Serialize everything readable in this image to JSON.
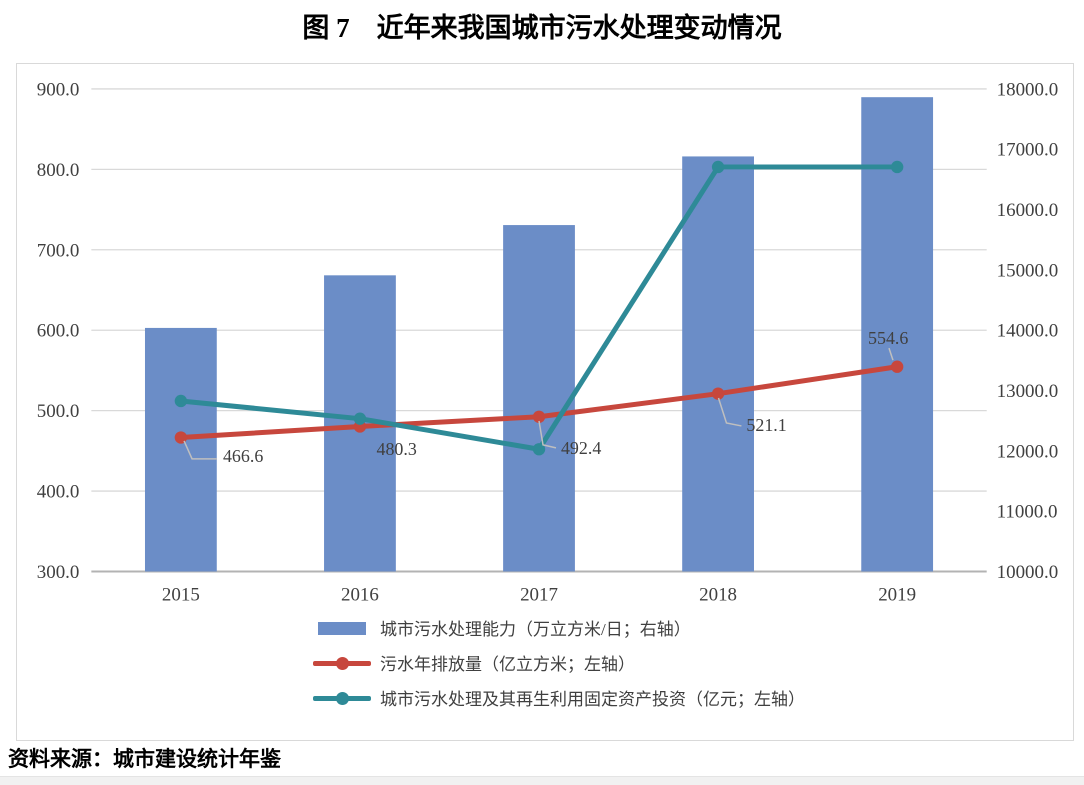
{
  "page": {
    "title": "图 7　近年来我国城市污水处理变动情况",
    "source_note": "资料来源：城市建设统计年鉴"
  },
  "chart_data": {
    "type": "combo",
    "title": "图 7　近年来我国城市污水处理变动情况",
    "categories": [
      "2015",
      "2016",
      "2017",
      "2018",
      "2019"
    ],
    "series": [
      {
        "name": "城市污水处理能力（万立方米/日；右轴）",
        "type": "bar",
        "axis": "right",
        "color": "#6b8dc7",
        "values": [
          14038,
          14910,
          15743,
          16881,
          17863
        ]
      },
      {
        "name": "污水年排放量（亿立方米；左轴）",
        "type": "line",
        "axis": "left",
        "color": "#c7473d",
        "values": [
          466.6,
          480.3,
          492.4,
          521.1,
          554.6
        ],
        "data_labels": [
          "466.6",
          "480.3",
          "492.4",
          "521.1",
          "554.6"
        ]
      },
      {
        "name": "城市污水处理及其再生利用固定资产投资（亿元；左轴）",
        "type": "line",
        "axis": "left",
        "color": "#2e8a97",
        "values": [
          512,
          490,
          452,
          803,
          803
        ]
      }
    ],
    "left_axis": {
      "min": 300,
      "max": 900,
      "step": 100,
      "decimals": 1,
      "tick_labels": [
        "900.0",
        "800.0",
        "700.0",
        "600.0",
        "500.0",
        "400.0",
        "300.0"
      ]
    },
    "right_axis": {
      "min": 10000,
      "max": 18000,
      "step": 1000,
      "decimals": 1,
      "tick_labels": [
        "18000.0",
        "17000.0",
        "16000.0",
        "15000.0",
        "14000.0",
        "13000.0",
        "12000.0",
        "11000.0",
        "10000.0"
      ]
    },
    "grid": true,
    "legend_position": "bottom",
    "colors": {
      "gridline": "#d9d9d9",
      "baseline": "#b3b3b3",
      "axis_text": "#404040",
      "leader_line": "#bfbfbf",
      "frame_border": "#d9d9d9"
    }
  }
}
